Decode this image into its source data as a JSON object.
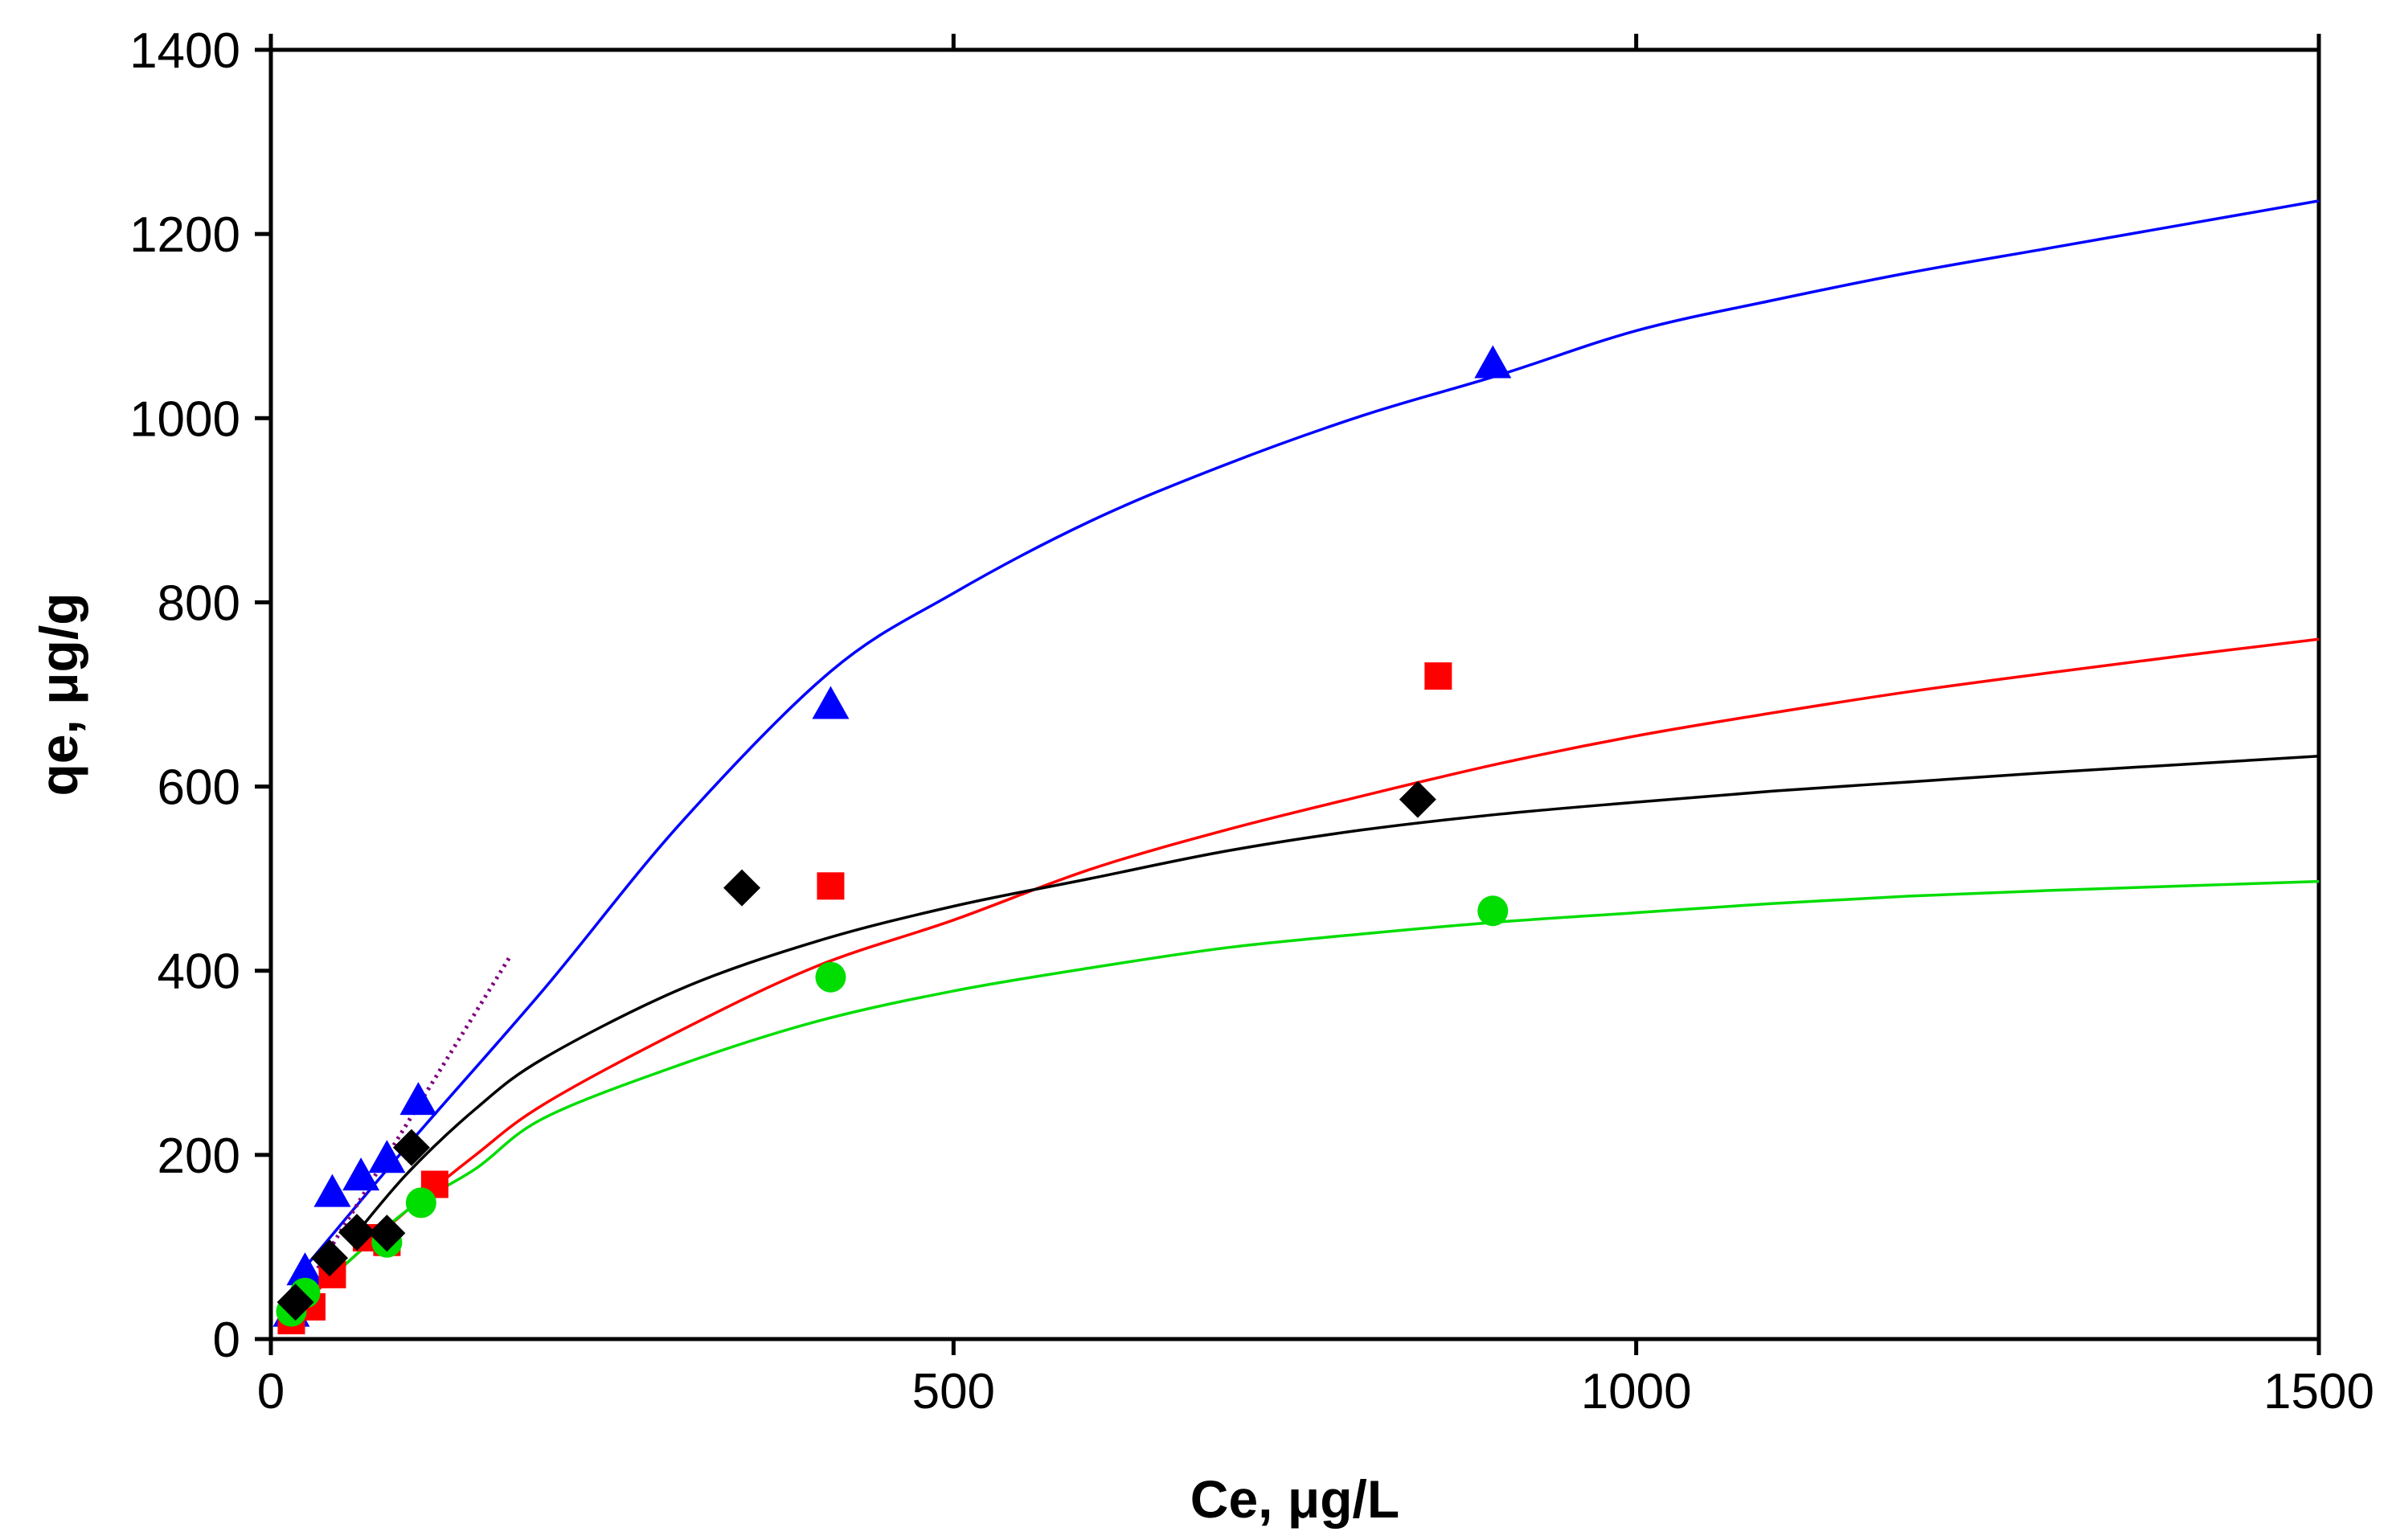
{
  "chart_data": {
    "type": "scatter",
    "title": "",
    "xlabel": "Ce, μg/L",
    "ylabel": "qe, μg/g",
    "xlim": [
      0,
      1500
    ],
    "ylim": [
      0,
      1400
    ],
    "xticks": [
      0,
      500,
      1000,
      1500
    ],
    "yticks": [
      0,
      200,
      400,
      600,
      800,
      1000,
      1200,
      1400
    ],
    "xtick_labels": [
      "0",
      "500",
      "1000",
      "1500"
    ],
    "ytick_labels": [
      "0",
      "200",
      "400",
      "600",
      "800",
      "1000",
      "1200",
      "1400"
    ],
    "grid": false,
    "legend": "none",
    "series": [
      {
        "name": "blue triangles",
        "color": "#0000ff",
        "marker": "triangle",
        "x": [
          15,
          25,
          45,
          66,
          85,
          108,
          410,
          895
        ],
        "y": [
          30,
          75,
          160,
          178,
          197,
          260,
          690,
          1060
        ],
        "fit_points": [
          [
            15,
            60
          ],
          [
            100,
            210
          ],
          [
            200,
            380
          ],
          [
            300,
            560
          ],
          [
            410,
            725
          ],
          [
            500,
            810
          ],
          [
            600,
            888
          ],
          [
            700,
            950
          ],
          [
            800,
            1003
          ],
          [
            900,
            1047
          ],
          [
            1000,
            1095
          ],
          [
            1100,
            1128
          ],
          [
            1200,
            1158
          ],
          [
            1300,
            1184
          ],
          [
            1400,
            1210
          ],
          [
            1500,
            1236
          ]
        ]
      },
      {
        "name": "red squares",
        "color": "#ff0000",
        "marker": "square",
        "x": [
          15,
          30,
          45,
          70,
          85,
          120,
          410,
          855
        ],
        "y": [
          20,
          35,
          70,
          110,
          105,
          168,
          492,
          720
        ],
        "fit_points": [
          [
            15,
            25
          ],
          [
            50,
            75
          ],
          [
            100,
            140
          ],
          [
            150,
            200
          ],
          [
            200,
            255
          ],
          [
            300,
            335
          ],
          [
            400,
            405
          ],
          [
            500,
            455
          ],
          [
            600,
            510
          ],
          [
            700,
            553
          ],
          [
            800,
            590
          ],
          [
            900,
            625
          ],
          [
            1000,
            655
          ],
          [
            1100,
            680
          ],
          [
            1200,
            703
          ],
          [
            1300,
            723
          ],
          [
            1400,
            742
          ],
          [
            1500,
            760
          ]
        ]
      },
      {
        "name": "green circles",
        "color": "#00dd00",
        "marker": "circle",
        "x": [
          15,
          25,
          85,
          110,
          410,
          895
        ],
        "y": [
          30,
          50,
          105,
          148,
          393,
          465
        ],
        "fit_points": [
          [
            15,
            30
          ],
          [
            50,
            75
          ],
          [
            100,
            140
          ],
          [
            150,
            185
          ],
          [
            200,
            240
          ],
          [
            300,
            298
          ],
          [
            400,
            345
          ],
          [
            500,
            378
          ],
          [
            600,
            403
          ],
          [
            700,
            425
          ],
          [
            800,
            440
          ],
          [
            900,
            453
          ],
          [
            1000,
            463
          ],
          [
            1100,
            473
          ],
          [
            1200,
            481
          ],
          [
            1300,
            487
          ],
          [
            1400,
            492
          ],
          [
            1500,
            497
          ]
        ]
      },
      {
        "name": "black diamonds",
        "color": "#000000",
        "marker": "diamond",
        "x": [
          18,
          43,
          63,
          85,
          103,
          345,
          840
        ],
        "y": [
          40,
          88,
          116,
          115,
          208,
          490,
          586
        ],
        "fit_points": [
          [
            60,
            110
          ],
          [
            100,
            180
          ],
          [
            150,
            250
          ],
          [
            200,
            305
          ],
          [
            300,
            380
          ],
          [
            400,
            432
          ],
          [
            500,
            470
          ],
          [
            600,
            500
          ],
          [
            700,
            530
          ],
          [
            800,
            553
          ],
          [
            900,
            570
          ],
          [
            1000,
            583
          ],
          [
            1100,
            595
          ],
          [
            1200,
            605
          ],
          [
            1300,
            615
          ],
          [
            1400,
            624
          ],
          [
            1500,
            633
          ]
        ]
      }
    ],
    "linear_reference": {
      "name": "purple dotted",
      "color": "#800080",
      "style": "dotted",
      "points": [
        [
          15,
          30
        ],
        [
          175,
          415
        ]
      ]
    }
  }
}
